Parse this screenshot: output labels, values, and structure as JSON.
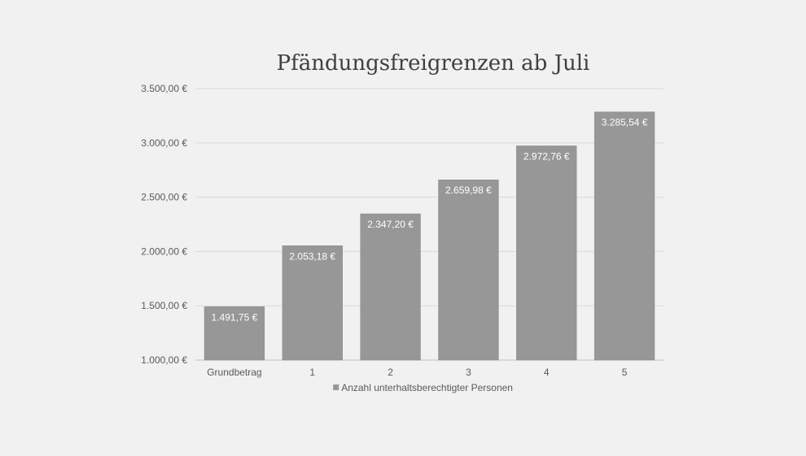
{
  "chart_data": {
    "type": "bar",
    "title": "Pfändungsfreigrenzen ab Juli",
    "xlabel": "",
    "ylabel": "",
    "categories": [
      "Grundbetrag",
      "1",
      "2",
      "3",
      "4",
      "5"
    ],
    "series": [
      {
        "name": "Anzahl unterhaltsberechtigter Personen",
        "values": [
          1491.75,
          2053.18,
          2347.2,
          2659.98,
          2972.76,
          3285.54
        ],
        "labels": [
          "1.491,75 €",
          "2.053,18 €",
          "2.347,20 €",
          "2.659,98 €",
          "2.972,76 €",
          "3.285,54 €"
        ]
      }
    ],
    "ylim": [
      1000,
      3500
    ],
    "yticks": [
      1000,
      1500,
      2000,
      2500,
      3000,
      3500
    ],
    "ytick_labels": [
      "1.000,00 €",
      "1.500,00 €",
      "2.000,00 €",
      "2.500,00 €",
      "3.000,00 €",
      "3.500,00 €"
    ],
    "grid": true,
    "legend": "bottom",
    "colors": {
      "bar": "#979797",
      "bar_border": "#8a8a8a",
      "grid": "#d9d9d9",
      "axis": "#bfbfbf",
      "text": "#595959",
      "title": "#404040",
      "data_label": "#ffffff"
    }
  }
}
